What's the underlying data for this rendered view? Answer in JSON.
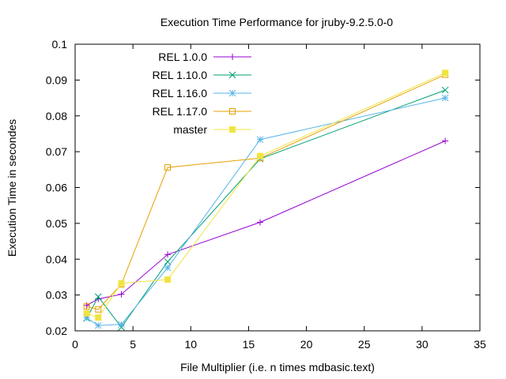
{
  "chart_data": {
    "type": "line",
    "title": "Execution Time Performance for jruby-9.2.5.0-0",
    "xlabel": "File Multiplier (i.e. n times mdbasic.text)",
    "ylabel": "Execution Time in secondes",
    "xlim": [
      0,
      35
    ],
    "ylim": [
      0.02,
      0.1
    ],
    "xticks": [
      0,
      5,
      10,
      15,
      20,
      25,
      30,
      35
    ],
    "yticks": [
      0.02,
      0.03,
      0.04,
      0.05,
      0.06,
      0.07,
      0.08,
      0.09,
      0.1
    ],
    "xtick_labels": [
      "0",
      "5",
      "10",
      "15",
      "20",
      "25",
      "30",
      "35"
    ],
    "ytick_labels": [
      "0.02",
      "0.03",
      "0.04",
      "0.05",
      "0.06",
      "0.07",
      "0.08",
      "0.09",
      "0.1"
    ],
    "grid": false,
    "legend_position": "top-left",
    "x": [
      1,
      2,
      4,
      8,
      16,
      32
    ],
    "series": [
      {
        "name": "REL 1.0.0",
        "color": "#9400d3",
        "marker": "plus",
        "values": [
          0.0271,
          0.0289,
          0.0302,
          0.0413,
          0.0503,
          0.073
        ]
      },
      {
        "name": "REL 1.10.0",
        "color": "#009e73",
        "marker": "cross",
        "values": [
          0.0235,
          0.0295,
          0.021,
          0.0393,
          0.068,
          0.0872
        ]
      },
      {
        "name": "REL 1.16.0",
        "color": "#56b4e9",
        "marker": "star",
        "values": [
          0.0236,
          0.0215,
          0.0218,
          0.0376,
          0.0734,
          0.085
        ]
      },
      {
        "name": "REL 1.17.0",
        "color": "#e69f00",
        "marker": "open-square",
        "values": [
          0.0268,
          0.026,
          0.033,
          0.0656,
          0.0682,
          0.0915
        ]
      },
      {
        "name": "master",
        "color": "#f0e442",
        "marker": "filled-square",
        "values": [
          0.0249,
          0.0237,
          0.0333,
          0.0343,
          0.0688,
          0.092
        ]
      }
    ]
  }
}
